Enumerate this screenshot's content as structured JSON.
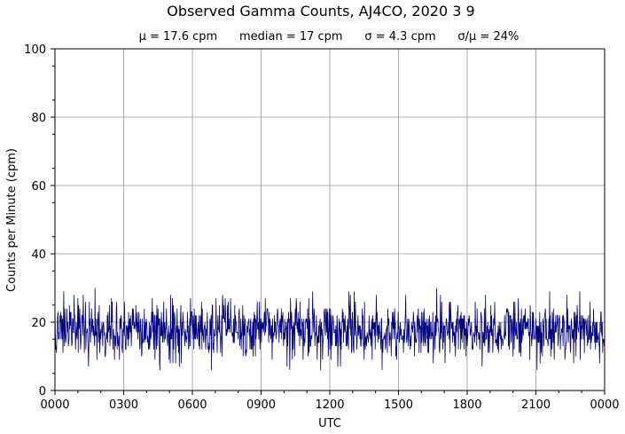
{
  "chart_data": {
    "type": "line",
    "title": "Observed Gamma Counts, AJ4CO, 2020 3 9",
    "subtitle": "μ = 17.6 cpm      median = 17 cpm      σ = 4.3 cpm      σ/μ = 24%",
    "xlabel": "UTC",
    "ylabel": "Counts per Minute (cpm)",
    "x_ticks": [
      "0000",
      "0300",
      "0600",
      "0900",
      "1200",
      "1500",
      "1800",
      "2100",
      "0000"
    ],
    "y_ticks": [
      0,
      20,
      40,
      60,
      80,
      100
    ],
    "xlim_minutes": [
      0,
      1440
    ],
    "ylim": [
      0,
      100
    ],
    "grid": true,
    "series": [
      {
        "color": "#000080",
        "summary": {
          "mean": 17.6,
          "median": 17,
          "std": 4.3,
          "min": 6,
          "max": 32
        }
      }
    ]
  }
}
